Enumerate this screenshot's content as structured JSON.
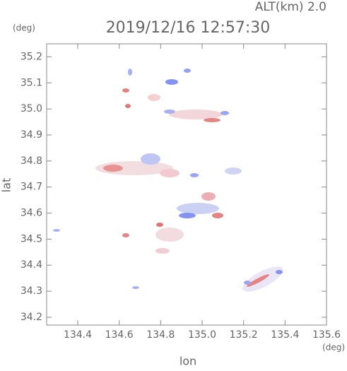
{
  "chart_data": {
    "type": "map",
    "title": "2019/12/16 12:57:30",
    "subtitle": "ALT(km) 2.0",
    "x_label": "lon",
    "y_label": "lat",
    "x_unit": "(deg)",
    "y_unit": "(deg)",
    "xlim": [
      134.25,
      135.6
    ],
    "xticks": [
      134.4,
      134.6,
      134.8,
      {
        "value": 135,
        "label": "135.0"
      },
      135.2,
      135.4,
      135.6
    ],
    "ylim": [
      34.17,
      35.25
    ],
    "yticks": [
      34.2,
      34.3,
      34.4,
      34.5,
      34.6,
      34.7,
      34.8,
      34.9,
      {
        "value": 35,
        "label": "35.0"
      },
      35.1,
      35.2
    ],
    "frame_color": "#888888"
  }
}
